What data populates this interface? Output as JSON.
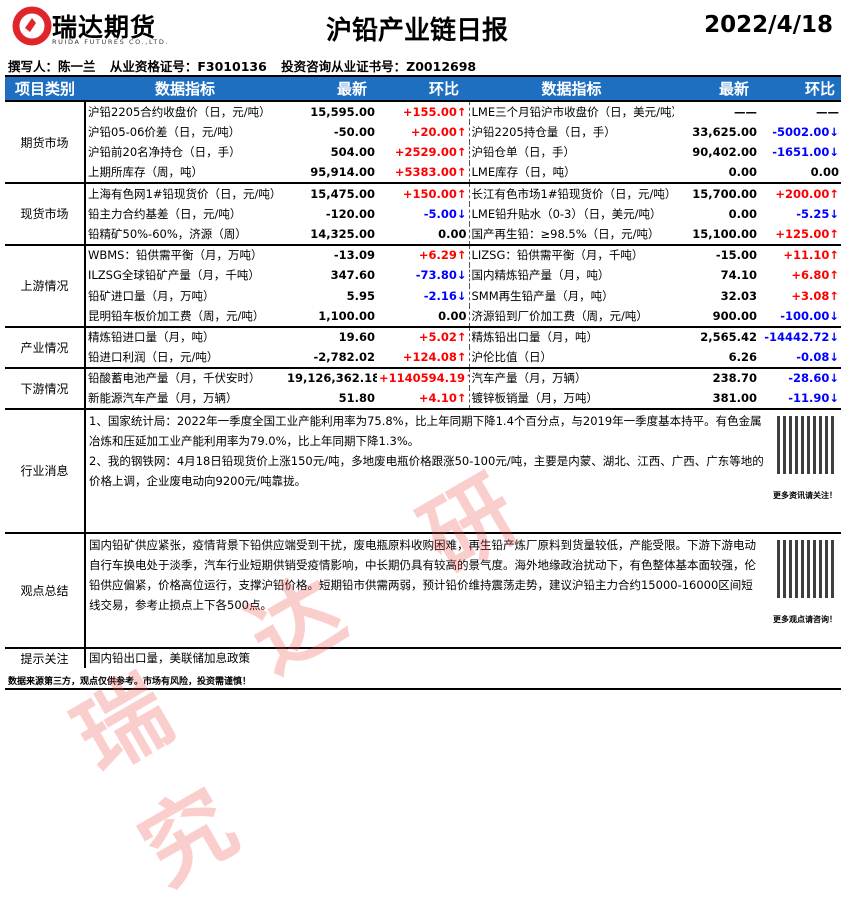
{
  "header": {
    "brand": "瑞达期货",
    "brand_en": "RUIDA FUTURES CO.,LTD.",
    "title": "沪铅产业链日报",
    "date": "2022/4/18"
  },
  "author": {
    "writer": "撰写人：陈一兰",
    "qualification": "从业资格证号：F3010136",
    "consult": "投资咨询从业证书号：Z0012698"
  },
  "table_headers": [
    "项目类别",
    "数据指标",
    "最新",
    "环比",
    "数据指标",
    "最新",
    "环比"
  ],
  "colors": {
    "header_bg": "#1f6fc1",
    "up": "#ff0000",
    "down": "#0000ff"
  },
  "sections": [
    {
      "category": "期货市场",
      "rows": [
        [
          "沪铅2205合约收盘价（日，元/吨）",
          "15,595.00",
          "+155.00↑",
          "LME三个月铅沪市收盘价（日，美元/吨）",
          "——",
          "——"
        ],
        [
          "沪铅05-06价差（日，元/吨）",
          "-50.00",
          "+20.00↑",
          "沪铅2205持仓量（日，手）",
          "33,625.00",
          "-5002.00↓"
        ],
        [
          "沪铅前20名净持仓（日，手）",
          "504.00",
          "+2529.00↑",
          "沪铅仓单（日，手）",
          "90,402.00",
          "-1651.00↓"
        ],
        [
          "上期所库存（周，吨）",
          "95,914.00",
          "+5383.00↑",
          "LME库存（日，吨）",
          "0.00",
          "0.00"
        ]
      ]
    },
    {
      "category": "现货市场",
      "rows": [
        [
          "上海有色网1#铅现货价（日，元/吨）",
          "15,475.00",
          "+150.00↑",
          "长江有色市场1#铅现货价（日，元/吨）",
          "15,700.00",
          "+200.00↑"
        ],
        [
          "铅主力合约基差（日，元/吨）",
          "-120.00",
          "-5.00↓",
          "LME铅升贴水（0-3）（日，美元/吨）",
          "0.00",
          "-5.25↓"
        ],
        [
          "铅精矿50%-60%，济源（周）",
          "14,325.00",
          "0.00",
          "国产再生铅：≥98.5%（日，元/吨）",
          "15,100.00",
          "+125.00↑"
        ]
      ]
    },
    {
      "category": "上游情况",
      "rows": [
        [
          "WBMS：铅供需平衡（月，万吨）",
          "-13.09",
          "+6.29↑",
          "LIZSG：铅供需平衡（月，千吨）",
          "-15.00",
          "+11.10↑"
        ],
        [
          "ILZSG全球铅矿产量（月，千吨）",
          "347.60",
          "-73.80↓",
          "国内精炼铅产量（月，吨）",
          "74.10",
          "+6.80↑"
        ],
        [
          "铅矿进口量（月，万吨）",
          "5.95",
          "-2.16↓",
          "SMM再生铅产量（月，吨）",
          "32.03",
          "+3.08↑"
        ],
        [
          "昆明铅车板价加工费（周，元/吨）",
          "1,100.00",
          "0.00",
          "济源铅到厂价加工费（周，元/吨）",
          "900.00",
          "-100.00↓"
        ]
      ]
    },
    {
      "category": "产业情况",
      "rows": [
        [
          "精炼铅进口量（月，吨）",
          "19.60",
          "+5.02↑",
          "精炼铅出口量（月，吨）",
          "2,565.42",
          "-14442.72↓"
        ],
        [
          "铅进口利润（日，元/吨）",
          "-2,782.02",
          "+124.08↑",
          "沪伦比值（日）",
          "6.26",
          "-0.08↓"
        ]
      ]
    },
    {
      "category": "下游情况",
      "rows": [
        [
          "铅酸蓄电池产量（月，千伏安时）",
          "19,126,362.18",
          "+1140594.19↑",
          "汽车产量（月，万辆）",
          "238.70",
          "-28.60↓"
        ],
        [
          "新能源汽车产量（月，万辆）",
          "51.80",
          "+4.10↑",
          "镀锌板销量（月，万吨）",
          "381.00",
          "-11.90↓"
        ]
      ]
    }
  ],
  "news": {
    "category": "行业消息",
    "lines": [
      "1、国家统计局：2022年一季度全国工业产能利用率为75.8%，比上年同期下降1.4个百分点，与2019年一季度基本持平。有色金属冶炼和压延加工业产能利用率为79.0%，比上年同期下降1.3%。",
      "2、我的钢铁网：4月18日铅现货价上涨150元/吨，多地废电瓶价格跟涨50-100元/吨，主要是内蒙、湖北、江西、广西、广东等地的价格上调，企业废电动向9200元/吨靠拢。"
    ],
    "qr_caption": "更多资讯请关注！"
  },
  "view": {
    "category": "观点总结",
    "text": "国内铅矿供应紧张，疫情背景下铅供应端受到干扰，废电瓶原料收购困难，再生铅产炼厂原料到货量较低，产能受限。下游下游电动自行车换电处于淡季，汽车行业短期供销受疫情影响，中长期仍具有较高的景气度。海外地缘政治扰动下，有色整体基本面较强，伦铅供应偏紧，价格高位运行，支撑沪铅价格。短期铅市供需两弱，预计铅价维持震荡走势，建议沪铅主力合约15000-16000区间短线交易，参考止损点上下各500点。",
    "qr_caption": "更多观点请咨询！"
  },
  "tip": {
    "category": "提示关注",
    "text": "国内铅出口量，美联储加息政策"
  },
  "footer": "数据来源第三方，观点仅供参考。市场有风险，投资需谨慎！",
  "watermark": "瑞达研究"
}
